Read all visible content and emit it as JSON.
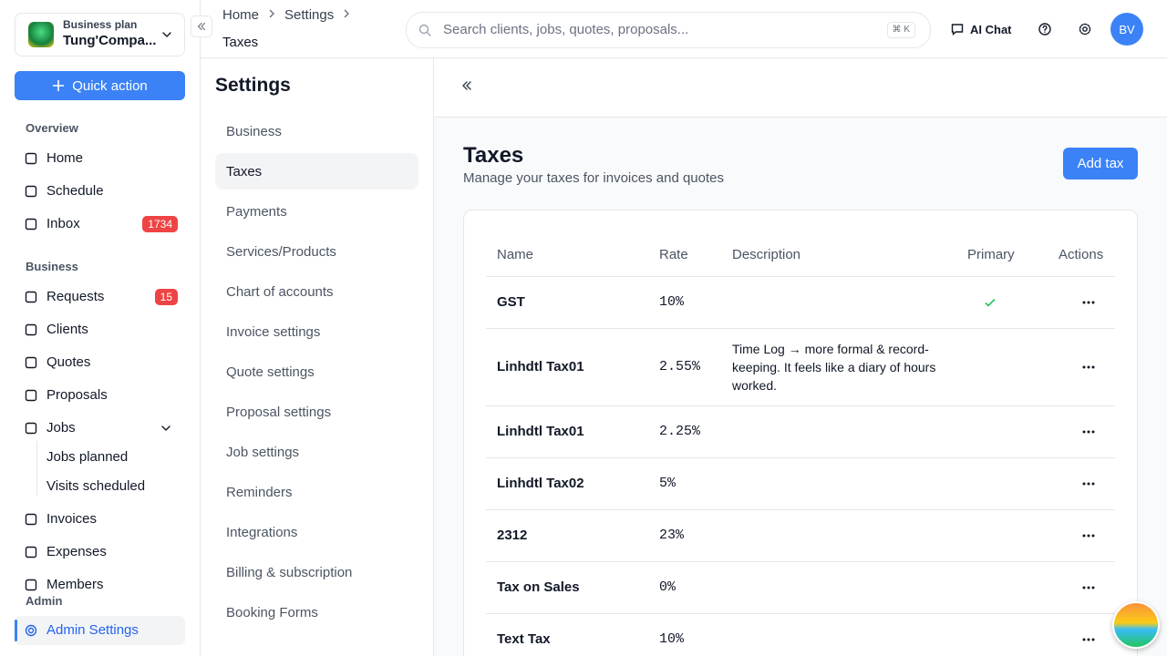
{
  "sidebar": {
    "plan": "Business plan",
    "company": "Tung'Compa...",
    "quick_action": "Quick action",
    "groups": [
      {
        "title": "Overview",
        "items": [
          {
            "label": "Home"
          },
          {
            "label": "Schedule"
          },
          {
            "label": "Inbox",
            "badge": 1734
          }
        ]
      },
      {
        "title": "Business",
        "items": [
          {
            "label": "Requests",
            "badge": 15
          },
          {
            "label": "Clients"
          },
          {
            "label": "Quotes"
          },
          {
            "label": "Proposals"
          },
          {
            "label": "Jobs",
            "children": [
              "Jobs planned",
              "Visits scheduled"
            ]
          },
          {
            "label": "Invoices"
          },
          {
            "label": "Expenses"
          },
          {
            "label": "Members"
          }
        ]
      }
    ],
    "admin": {
      "title": "Admin",
      "item": "Admin Settings"
    }
  },
  "breadcrumb": [
    "Home",
    "Settings",
    "Taxes"
  ],
  "search": {
    "placeholder": "Search clients, jobs, quotes, proposals...",
    "shortcut": "⌘ K"
  },
  "topbar": {
    "ai_chat": "AI Chat",
    "avatar": "BV"
  },
  "settings": {
    "title": "Settings",
    "active": 1,
    "items": [
      "Business",
      "Taxes",
      "Payments",
      "Services/Products",
      "Chart of accounts",
      "Invoice settings",
      "Quote settings",
      "Proposal settings",
      "Job settings",
      "Reminders",
      "Integrations",
      "Billing & subscription",
      "Booking Forms"
    ]
  },
  "page": {
    "title": "Taxes",
    "subtitle": "Manage your taxes for invoices and quotes",
    "add_button": "Add tax"
  },
  "table": {
    "headers": [
      "Name",
      "Rate",
      "Description",
      "Primary",
      "Actions"
    ],
    "rows": [
      {
        "name": "GST",
        "rate": "10%",
        "description": "",
        "primary": true
      },
      {
        "name": "Linhdtl Tax01",
        "rate": "2.55%",
        "description": "Time Log → more formal & record-keeping. It feels like a diary of hours worked.",
        "primary": false
      },
      {
        "name": "Linhdtl Tax01",
        "rate": "2.25%",
        "description": "",
        "primary": false
      },
      {
        "name": "Linhdtl Tax02",
        "rate": "5%",
        "description": "",
        "primary": false
      },
      {
        "name": "2312",
        "rate": "23%",
        "description": "",
        "primary": false
      },
      {
        "name": "Tax on Sales",
        "rate": "0%",
        "description": "",
        "primary": false
      },
      {
        "name": "Text Tax",
        "rate": "10%",
        "description": "",
        "primary": false
      }
    ]
  }
}
